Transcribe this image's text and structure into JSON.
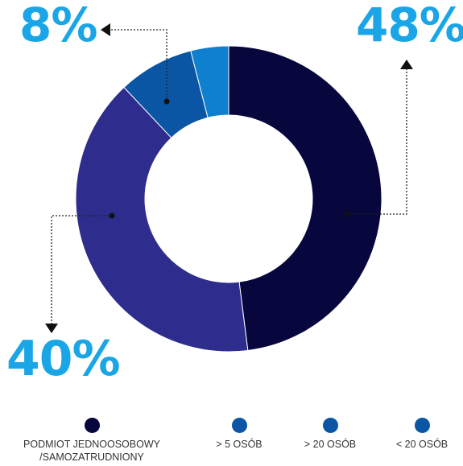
{
  "chart_data": {
    "type": "donut",
    "slices": [
      {
        "label": "PODMIOT JEDNOOSOBOWY /SAMOZATRUDNIONY",
        "value": 48,
        "color": "#07063d"
      },
      {
        "label": "> 5 OSÓB",
        "value": 40,
        "color": "#2e2c8c"
      },
      {
        "label": "> 20 OSÓB",
        "value": 8,
        "color": "#0a56a4"
      },
      {
        "label": "< 20 OSÓB",
        "value": 4,
        "color": "#0f80d0"
      }
    ],
    "annotations": [
      "48%",
      "40%",
      "8%"
    ],
    "legend_position": "bottom"
  },
  "legend": [
    {
      "label_line1": "PODMIOT JEDNOOSOBOWY",
      "label_line2": "/SAMOZATRUDNIONY",
      "color": "#07063d"
    },
    {
      "label_line1": "> 5 OSÓB",
      "label_line2": "",
      "color": "#0a56a4"
    },
    {
      "label_line1": "> 20 OSÓB",
      "label_line2": "",
      "color": "#0a56a4"
    },
    {
      "label_line1": "< 20 OSÓB",
      "label_line2": "",
      "color": "#0a56a4"
    }
  ]
}
